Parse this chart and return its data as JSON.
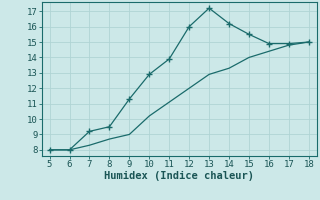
{
  "xlabel": "Humidex (Indice chaleur)",
  "bg_color": "#cce8e8",
  "grid_color": "#b0d4d4",
  "line_color": "#1a6b6b",
  "curve_x": [
    5,
    6,
    7,
    8,
    9,
    10,
    11,
    12,
    13,
    14,
    15,
    16,
    17,
    18
  ],
  "curve_y": [
    8.0,
    8.0,
    9.2,
    9.5,
    11.3,
    12.9,
    13.9,
    16.0,
    17.2,
    16.2,
    15.5,
    14.9,
    14.9,
    15.0
  ],
  "line2_x": [
    5,
    6,
    7,
    8,
    9,
    10,
    11,
    12,
    13,
    14,
    15,
    16,
    17,
    18
  ],
  "line2_y": [
    8.0,
    8.0,
    8.3,
    8.7,
    9.0,
    10.2,
    11.1,
    12.0,
    12.9,
    13.3,
    14.0,
    14.4,
    14.8,
    15.0
  ],
  "xlim": [
    4.6,
    18.4
  ],
  "ylim": [
    7.6,
    17.6
  ],
  "xticks": [
    5,
    6,
    7,
    8,
    9,
    10,
    11,
    12,
    13,
    14,
    15,
    16,
    17,
    18
  ],
  "yticks": [
    8,
    9,
    10,
    11,
    12,
    13,
    14,
    15,
    16,
    17
  ],
  "fontsize_tick": 6.5,
  "fontsize_xlabel": 7.5
}
